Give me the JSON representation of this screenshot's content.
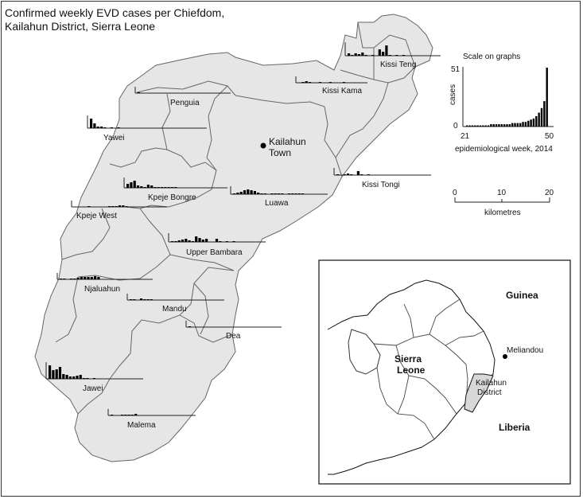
{
  "title_line1": "Confirmed weekly EVD cases per Chiefdom,",
  "title_line2": "Kailahun District, Sierra Leone",
  "town": {
    "name_line1": "Kailahun",
    "name_line2": "Town"
  },
  "scale_graph": {
    "title": "Scale on graphs",
    "ylabel": "cases",
    "y_max_label": "51",
    "y_min_label": "0",
    "x_min_label": "21",
    "x_max_label": "50",
    "xlabel": "epidemiological week, 2014",
    "values": [
      1,
      1,
      1,
      1,
      1,
      1,
      1,
      1,
      1,
      2,
      2,
      2,
      2,
      2,
      2,
      2,
      2,
      3,
      3,
      3,
      3,
      4,
      4,
      5,
      6,
      7,
      9,
      12,
      16,
      22,
      51
    ]
  },
  "distance_scale": {
    "ticks": [
      "0",
      "10",
      "20"
    ],
    "unit": "kilometres"
  },
  "inset": {
    "country": "Sierra",
    "country2": "Leone",
    "guinea": "Guinea",
    "liberia": "Liberia",
    "town": "Meliandou",
    "district1": "Kailahun",
    "district2": "District"
  },
  "chart_data": [
    {
      "type": "bar",
      "chiefdom": "Kissi Teng",
      "values": [
        3,
        1,
        3,
        2,
        4,
        1,
        0,
        1,
        0,
        8,
        5,
        13,
        1,
        0,
        1,
        0,
        1,
        0,
        0,
        0
      ]
    },
    {
      "type": "bar",
      "chiefdom": "Kissi Kama",
      "values": [
        0,
        1,
        2,
        1,
        0,
        0,
        1,
        0,
        0,
        1,
        0,
        0,
        0,
        1,
        0,
        0,
        0,
        0
      ]
    },
    {
      "type": "bar",
      "chiefdom": "Penguia",
      "values": [
        1,
        0,
        0,
        0,
        0,
        0,
        0,
        0,
        0,
        0,
        0,
        0
      ]
    },
    {
      "type": "bar",
      "chiefdom": "Yawei",
      "values": [
        12,
        6,
        2,
        2,
        1,
        0,
        1,
        0,
        1
      ]
    },
    {
      "type": "bar",
      "chiefdom": "Kissi Tongi",
      "values": [
        1,
        0,
        1,
        2,
        1,
        0,
        5,
        1,
        0,
        1
      ]
    },
    {
      "type": "bar",
      "chiefdom": "Kpeje Bongre",
      "values": [
        5,
        7,
        9,
        3,
        2,
        1,
        4,
        3,
        1,
        1,
        1,
        1,
        1,
        1,
        1
      ]
    },
    {
      "type": "bar",
      "chiefdom": "Luawa",
      "values": [
        1,
        2,
        3,
        5,
        6,
        5,
        4,
        2,
        1,
        1,
        0,
        1,
        1,
        1,
        1,
        0,
        1,
        1,
        1,
        1,
        1
      ]
    },
    {
      "type": "bar",
      "chiefdom": "Kpeje West",
      "values": [
        0,
        0,
        0,
        0,
        1,
        0,
        0,
        0,
        0,
        0,
        1,
        1,
        1,
        2,
        2,
        1
      ]
    },
    {
      "type": "bar",
      "chiefdom": "Upper Bambara",
      "values": [
        1,
        1,
        2,
        3,
        4,
        2,
        1,
        7,
        5,
        3,
        4,
        0,
        0,
        4,
        1,
        0,
        1,
        0,
        1
      ]
    },
    {
      "type": "bar",
      "chiefdom": "Njaluahun",
      "values": [
        1,
        1,
        0,
        1,
        1,
        2,
        3,
        3,
        3,
        3,
        4,
        3
      ]
    },
    {
      "type": "bar",
      "chiefdom": "Mandu",
      "values": [
        1,
        1,
        0,
        2,
        1,
        1,
        1,
        0,
        0,
        0,
        0,
        0
      ]
    },
    {
      "type": "bar",
      "chiefdom": "Dea",
      "values": [
        1,
        0,
        0
      ]
    },
    {
      "type": "bar",
      "chiefdom": "Jawei",
      "values": [
        17,
        11,
        12,
        15,
        6,
        5,
        3,
        3,
        4,
        5,
        1,
        1,
        0,
        1,
        0
      ]
    },
    {
      "type": "bar",
      "chiefdom": "Malema",
      "values": [
        1,
        0,
        0,
        1,
        1,
        1,
        1,
        2
      ]
    }
  ]
}
